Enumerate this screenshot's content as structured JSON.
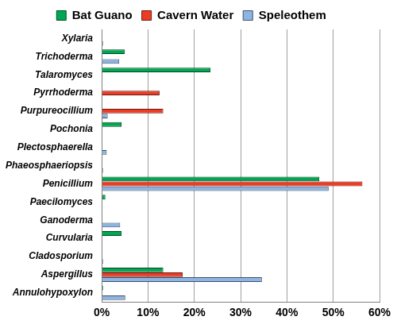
{
  "chart_data": {
    "type": "bar",
    "orientation": "horizontal",
    "categories": [
      "Xylaria",
      "Trichoderma",
      "Talaromyces",
      "Pyrrhoderma",
      "Purpureocillium",
      "Pochonia",
      "Plectosphaerella",
      "Phaeosphaeriopsis",
      "Penicillium",
      "Paecilomyces",
      "Ganoderma",
      "Curvularia",
      "Cladosporium",
      "Aspergillus",
      "Annulohypoxylon"
    ],
    "series": [
      {
        "name": "Bat Guano",
        "color": "#00a651",
        "values": [
          0,
          5,
          23.5,
          0,
          0,
          4.3,
          0,
          0,
          47,
          0.8,
          0,
          4.3,
          0,
          13.3,
          0.3
        ]
      },
      {
        "name": "Cavern Water",
        "color": "#ee3b24",
        "values": [
          0,
          0,
          0,
          12.5,
          13.3,
          0,
          0,
          0,
          56.3,
          0,
          0,
          0,
          0,
          17.5,
          0
        ]
      },
      {
        "name": "Speleothem",
        "color": "#8eb4e3",
        "values": [
          0.3,
          3.8,
          0,
          0,
          1.3,
          0,
          1.1,
          0.3,
          49,
          0,
          4,
          0,
          0.3,
          34.6,
          5.1
        ]
      }
    ],
    "xlim": [
      0,
      60
    ],
    "xticks": [
      {
        "value": 0,
        "label": "0%"
      },
      {
        "value": 10,
        "label": "10%"
      },
      {
        "value": 20,
        "label": "20%"
      },
      {
        "value": 30,
        "label": "30%"
      },
      {
        "value": 40,
        "label": "40%"
      },
      {
        "value": 50,
        "label": "50%"
      },
      {
        "value": 60,
        "label": "60%"
      }
    ],
    "grid": true,
    "legend": "top"
  }
}
